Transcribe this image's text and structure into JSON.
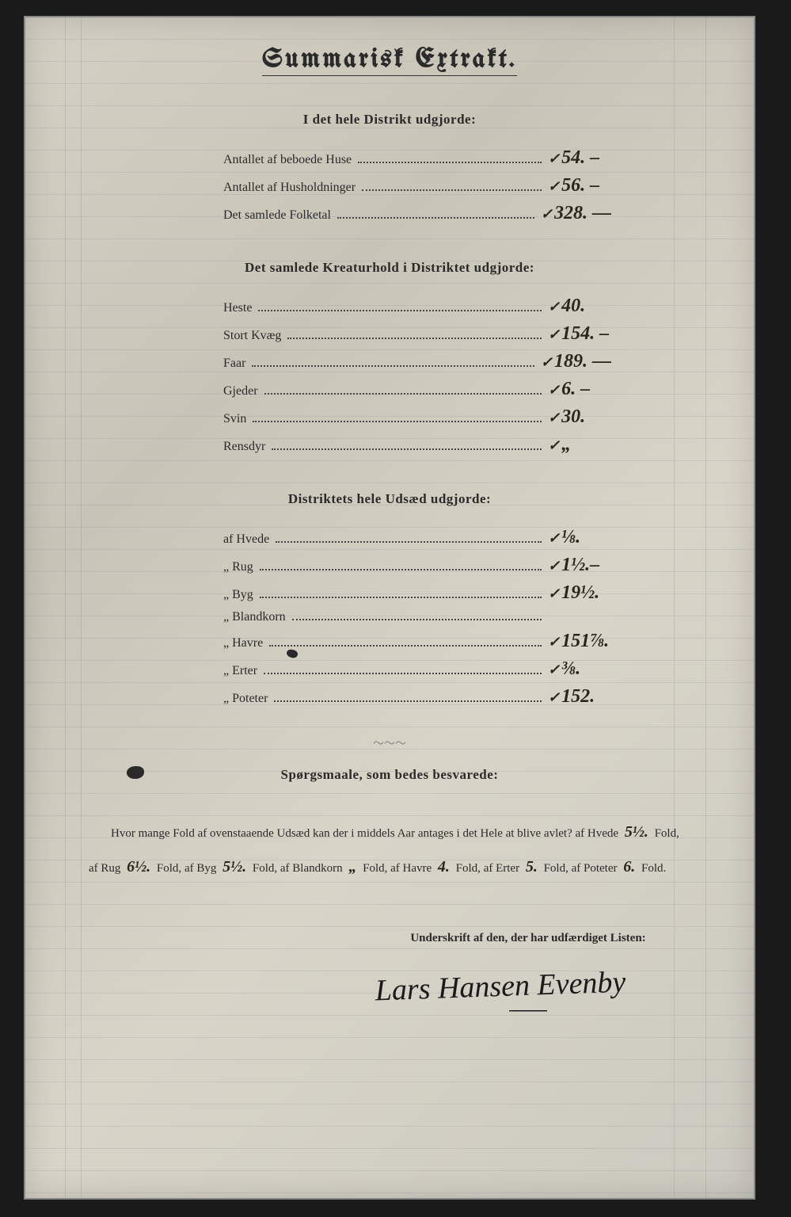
{
  "title": "Summarisk Extrakt.",
  "section1": {
    "header": "I det hele Distrikt udgjorde:",
    "rows": [
      {
        "label": "Antallet af beboede Huse",
        "value": "54. –"
      },
      {
        "label": "Antallet af Husholdninger",
        "value": "56. –"
      },
      {
        "label": "Det samlede Folketal",
        "value": "328. —"
      }
    ]
  },
  "section2": {
    "header": "Det samlede Kreaturhold i Distriktet udgjorde:",
    "rows": [
      {
        "label": "Heste",
        "value": "40."
      },
      {
        "label": "Stort Kvæg",
        "value": "154. –"
      },
      {
        "label": "Faar",
        "value": "189. —"
      },
      {
        "label": "Gjeder",
        "value": "6. –"
      },
      {
        "label": "Svin",
        "value": "30."
      },
      {
        "label": "Rensdyr",
        "value": "„"
      }
    ]
  },
  "section3": {
    "header": "Distriktets hele Udsæd udgjorde:",
    "rows": [
      {
        "label": "af Hvede",
        "value": "⅛."
      },
      {
        "label": "„  Rug",
        "value": "1½.–"
      },
      {
        "label": "„  Byg",
        "value": "19½."
      },
      {
        "label": "„  Blandkorn",
        "value": ""
      },
      {
        "label": "„  Havre",
        "value": "151⅞."
      },
      {
        "label": "„  Erter",
        "value": "⅜."
      },
      {
        "label": "„  Poteter",
        "value": "152."
      }
    ]
  },
  "questions": {
    "header": "Spørgsmaale, som bedes besvarede:",
    "text_prefix": "Hvor mange Fold af ovenstaaende Udsæd kan der i middels Aar antages i det Hele at blive avlet?",
    "fields": [
      {
        "label": "af Hvede",
        "value": "5½.",
        "suffix": "Fold,"
      },
      {
        "label": "af Rug",
        "value": "6½.",
        "suffix": "Fold,"
      },
      {
        "label": "af Byg",
        "value": "5½.",
        "suffix": "Fold,"
      },
      {
        "label": "af Blandkorn",
        "value": "„",
        "suffix": "Fold,"
      },
      {
        "label": "af Havre",
        "value": "4.",
        "suffix": "Fold,"
      },
      {
        "label": "af Erter",
        "value": "5.",
        "suffix": "Fold,"
      },
      {
        "label": "af Poteter",
        "value": "6.",
        "suffix": "Fold."
      }
    ]
  },
  "signature": {
    "label": "Underskrift af den, der har udfærdiget Listen:",
    "name": "Lars Hansen Evenby"
  },
  "colors": {
    "paper": "#d4d0c4",
    "ink_print": "#2a2a2a",
    "ink_hand": "#2a241a",
    "rule": "rgba(100,120,140,0.15)"
  }
}
